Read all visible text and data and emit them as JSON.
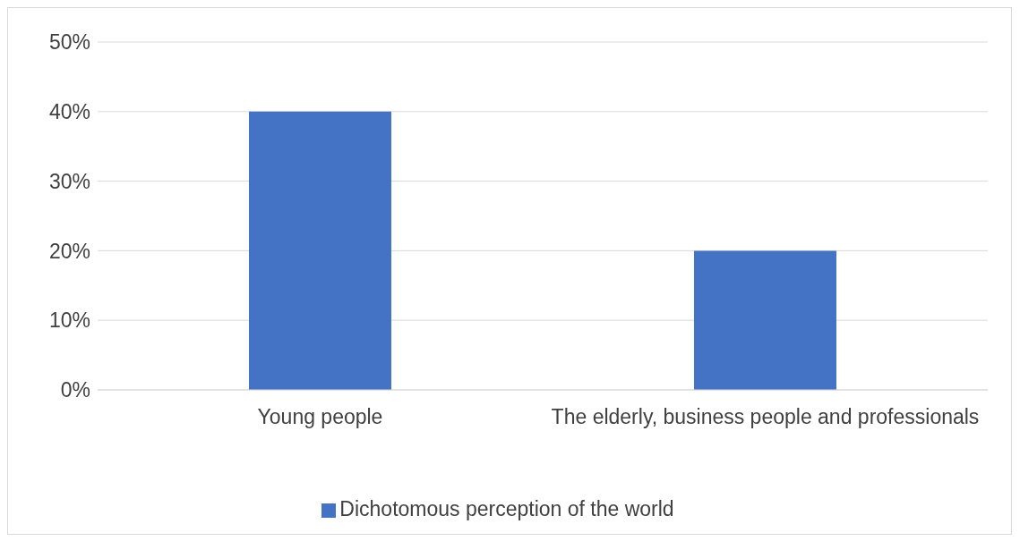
{
  "chart_data": {
    "type": "bar",
    "categories": [
      "Young people",
      "The elderly, business people and professionals"
    ],
    "series": [
      {
        "name": "Dichotomous perception of the world",
        "color": "#4472c4",
        "values": [
          40,
          20
        ]
      }
    ],
    "ylim": [
      0,
      50
    ],
    "yticks": [
      {
        "value": 0,
        "label": "0%"
      },
      {
        "value": 10,
        "label": "10%"
      },
      {
        "value": 20,
        "label": "20%"
      },
      {
        "value": 30,
        "label": "30%"
      },
      {
        "value": 40,
        "label": "40%"
      },
      {
        "value": 50,
        "label": "50%"
      }
    ],
    "grid": "y",
    "legend": "bottom"
  }
}
